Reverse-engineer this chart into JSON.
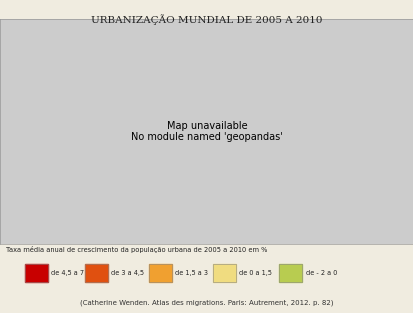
{
  "title": "Urbanização mundial de 2005 a 2010",
  "legend_label": "Taxa média anual de crescimento da população urbana de 2005 a 2010 em %",
  "citation": "(Catherine Wenden. Atlas des migrations. Paris: Autrement, 2012. p. 82)",
  "legend_items": [
    {
      "label": "de 4,5 a 7",
      "color": "#c80000"
    },
    {
      "label": "de 3 a 4,5",
      "color": "#e05010"
    },
    {
      "label": "de 1,5 a 3",
      "color": "#f0a030"
    },
    {
      "label": "de 0 a 1,5",
      "color": "#f0dc80"
    },
    {
      "label": "de - 2 a 0",
      "color": "#b8cc50"
    }
  ],
  "bg_color": "#f0ece0",
  "ocean_color": "#c8dce8",
  "border_color": "#999999",
  "fig_bg": "#f0ece0",
  "color_by_country": {
    "Niger": 0,
    "Mali": 0,
    "Burkina Faso": 0,
    "Chad": 0,
    "Nigeria": 0,
    "South Sudan": 0,
    "Ethiopia": 0,
    "Somalia": 0,
    "Tanzania": 0,
    "Mozambique": 0,
    "Malawi": 0,
    "Zambia": 0,
    "Angola": 0,
    "Uganda": 0,
    "Rwanda": 0,
    "Burundi": 0,
    "Dem. Rep. Congo": 0,
    "Central African Rep.": 0,
    "Guinea": 0,
    "Guinea-Bissau": 0,
    "Sierra Leone": 0,
    "Liberia": 0,
    "Ivory Coast": 0,
    "Benin": 0,
    "Togo": 0,
    "Senegal": 0,
    "Gambia": 0,
    "Afghanistan": 0,
    "Madagascar": 0,
    "Congo": 0,
    "Eq. Guinea": 0,
    "Eritrea": 0,
    "Djibouti": 0,
    "Cameroon": 1,
    "Ghana": 1,
    "Mauritania": 1,
    "Sudan": 1,
    "Kenya": 1,
    "Zimbabwe": 1,
    "Namibia": 1,
    "Bolivia": 1,
    "Paraguay": 1,
    "Nicaragua": 1,
    "Honduras": 1,
    "Guatemala": 1,
    "Haiti": 1,
    "Papua New Guinea": 1,
    "Cambodia": 1,
    "Laos": 1,
    "Myanmar": 1,
    "Bangladesh": 1,
    "Pakistan": 1,
    "Iraq": 1,
    "Syria": 1,
    "Yemen": 1,
    "Oman": 1,
    "Nepal": 1,
    "India": 1,
    "Indonesia": 1,
    "Philippines": 1,
    "Vietnam": 1,
    "Peru": 1,
    "Ecuador": 1,
    "Gabon": 1,
    "Swaziland": 1,
    "Lesotho": 1,
    "Botswana": 1,
    "Dominican Rep.": 1,
    "Cuba": 1,
    "Panama": 1,
    "Costa Rica": 1,
    "El Salvador": 1,
    "Belize": 1,
    "Trinidad and Tobago": 1,
    "Timor-Leste": 1,
    "Solomon Is.": 1,
    "Vanuatu": 1,
    "Jordan": 1,
    "Lebanon": 1,
    "Palestine": 1,
    "Kuwait": 1,
    "Morocco": 2,
    "Algeria": 2,
    "Libya": 2,
    "Egypt": 2,
    "South Africa": 2,
    "Brazil": 2,
    "Colombia": 2,
    "Venezuela": 2,
    "Mexico": 2,
    "China": 2,
    "Kazakhstan": 2,
    "Iran": 2,
    "Turkey": 2,
    "Saudi Arabia": 2,
    "Thailand": 2,
    "Malaysia": 2,
    "Tunisia": 2,
    "Uzbekistan": 2,
    "Turkmenistan": 2,
    "Kyrgyzstan": 2,
    "Tajikistan": 2,
    "Azerbaijan": 2,
    "Georgia": 2,
    "Armenia": 2,
    "Israel": 2,
    "United Arab Emirates": 2,
    "Qatar": 2,
    "Bahrain": 2,
    "Sri Lanka": 2,
    "North Korea": 2,
    "South Korea": 2,
    "Taiwan": 2,
    "Bhutan": 2,
    "Brunei": 2,
    "United States of America": 3,
    "Canada": 3,
    "Argentina": 3,
    "Chile": 3,
    "W. Sahara": 3,
    "Australia": 3,
    "Spain": 3,
    "France": 3,
    "Germany": 3,
    "Italy": 3,
    "United Kingdom": 3,
    "Poland": 3,
    "Romania": 3,
    "Ukraine": 3,
    "Sweden": 3,
    "Norway": 3,
    "Finland": 3,
    "Denmark": 3,
    "Netherlands": 3,
    "Belgium": 3,
    "Ireland": 3,
    "Iceland": 3,
    "New Zealand": 3,
    "Uruguay": 3,
    "Suriname": 3,
    "Guyana": 3,
    "Jamaica": 3,
    "Puerto Rico": 3,
    "Russia": 4,
    "Japan": 4,
    "Belarus": 4,
    "Latvia": 4,
    "Lithuania": 4,
    "Estonia": 4,
    "Moldova": 4,
    "Bulgaria": 4,
    "Serbia": 4,
    "Croatia": 4,
    "Czech Rep.": 4,
    "Slovakia": 4,
    "Hungary": 4,
    "Austria": 4,
    "Switzerland": 4,
    "Portugal": 4,
    "Mongolia": 4,
    "Bosnia and Herz.": 4,
    "Kosovo": 4,
    "Macedonia": 4,
    "Albania": 4,
    "Montenegro": 4,
    "Greece": 4,
    "Slovenia": 4,
    "Luxembourg": 4
  },
  "default_color_idx": 2,
  "map_xlim": [
    -180,
    180
  ],
  "map_ylim": [
    -58,
    83
  ]
}
